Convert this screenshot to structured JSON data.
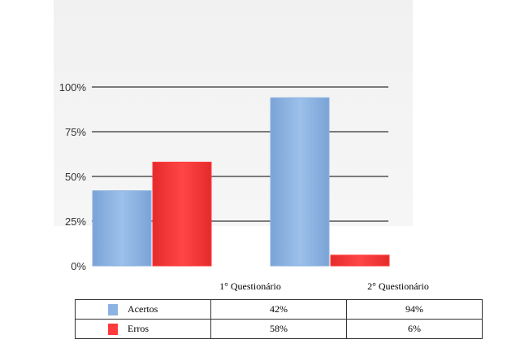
{
  "chart_data": {
    "type": "bar",
    "categories": [
      "1° Questionário",
      "2° Questionário"
    ],
    "series": [
      {
        "name": "Acertos",
        "values": [
          42,
          94
        ],
        "color": "#8db3e2"
      },
      {
        "name": "Erros",
        "values": [
          58,
          6
        ],
        "color": "#ff3b3b"
      }
    ],
    "ylim": [
      0,
      100
    ],
    "yticks": [
      {
        "value": 0,
        "label": "0%"
      },
      {
        "value": 25,
        "label": "25%"
      },
      {
        "value": 50,
        "label": "50%"
      },
      {
        "value": 75,
        "label": "75%"
      },
      {
        "value": 100,
        "label": "100%"
      }
    ],
    "grid": true,
    "legend": "data-table-below",
    "table": [
      {
        "series": "Acertos",
        "values": [
          "42%",
          "94%"
        ]
      },
      {
        "series": "Erros",
        "values": [
          "58%",
          "6%"
        ]
      }
    ]
  }
}
